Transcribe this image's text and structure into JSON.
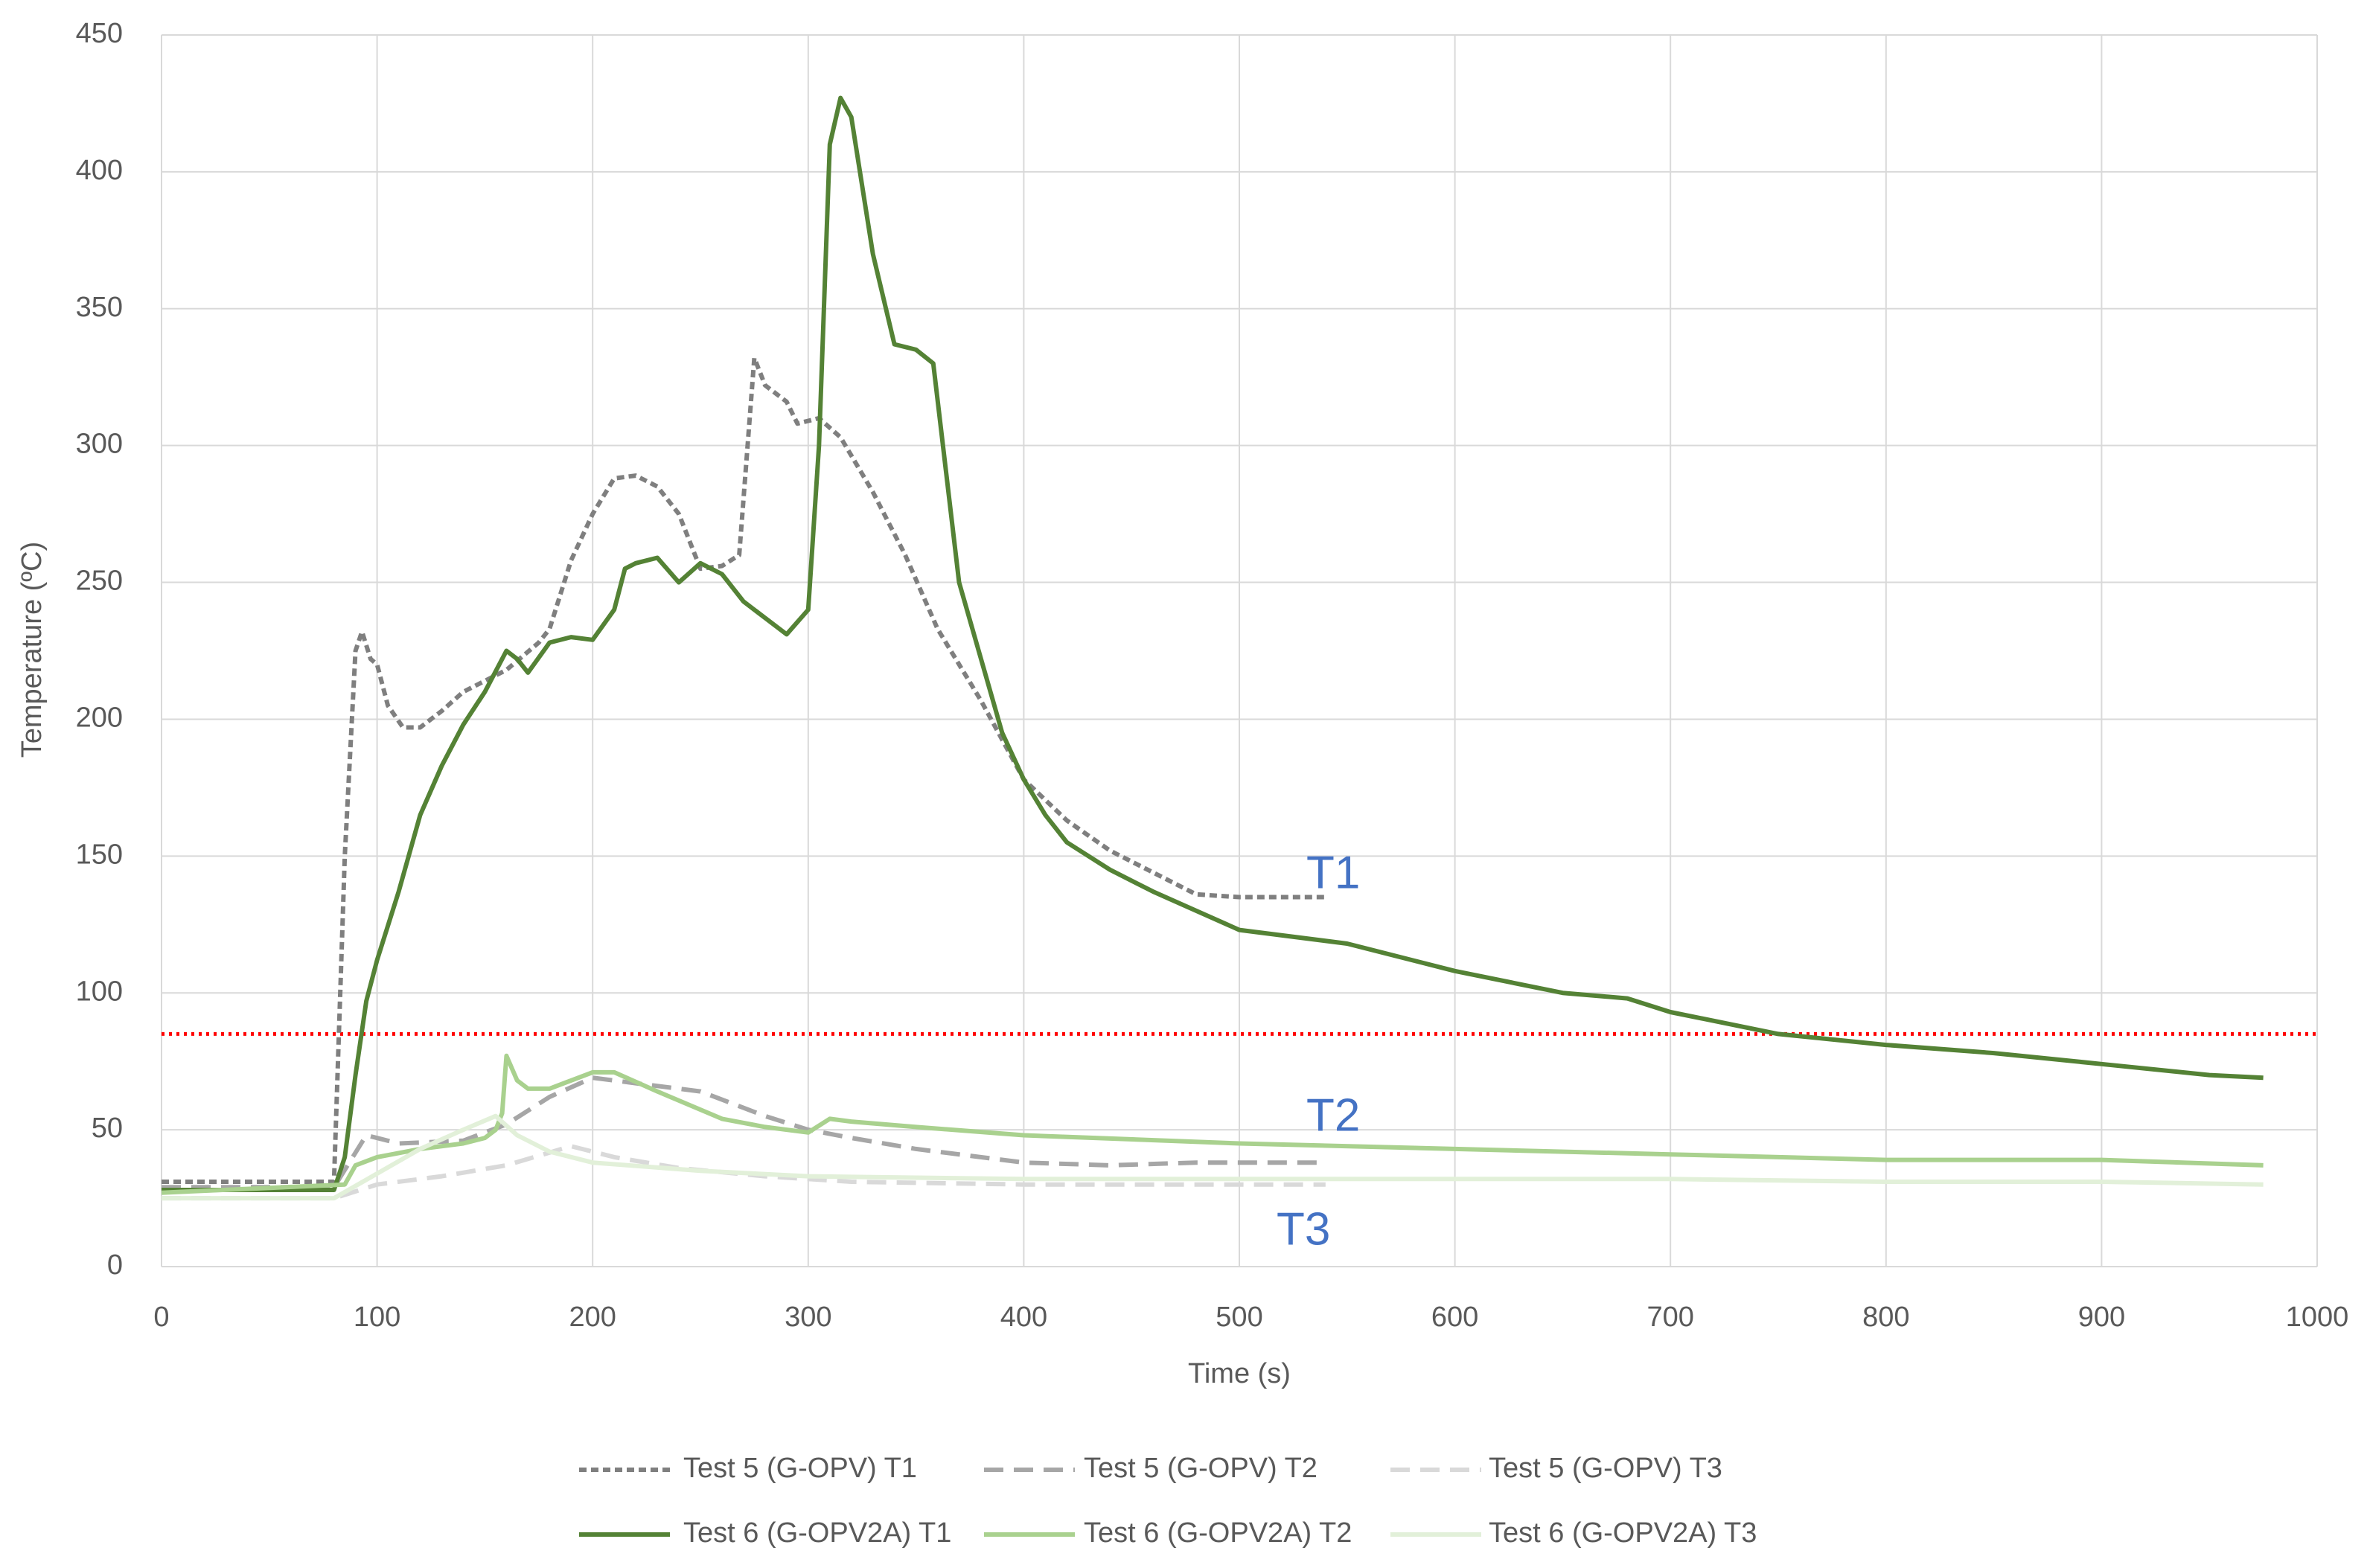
{
  "chart_data": {
    "type": "line",
    "xlabel": "Time (s)",
    "ylabel": "Temperature (ºC)",
    "xlim": [
      0,
      1000
    ],
    "xticks": [
      0,
      100,
      200,
      300,
      400,
      500,
      600,
      700,
      800,
      900,
      1000
    ],
    "ylim": [
      0,
      450
    ],
    "yticks": [
      0,
      50,
      100,
      150,
      200,
      250,
      300,
      350,
      400,
      450
    ],
    "grid": true,
    "legend": "bottom",
    "reference_line": {
      "value": 85,
      "color": "#ff0000"
    },
    "annotations": [
      "T1",
      "T2",
      "T3"
    ],
    "annotation_color": "#4472c4",
    "series": [
      {
        "name": "Test 5 (G-OPV) T1",
        "color": "#7f7f7f",
        "dash": "short",
        "x": [
          0,
          80,
          85,
          90,
          93,
          97,
          100,
          105,
          112,
          120,
          130,
          140,
          160,
          175,
          180,
          190,
          200,
          210,
          220,
          230,
          240,
          250,
          260,
          268,
          275,
          280,
          290,
          295,
          305,
          315,
          330,
          345,
          360,
          380,
          400,
          420,
          440,
          460,
          480,
          500,
          540
        ],
        "values": [
          31,
          31,
          150,
          225,
          232,
          222,
          220,
          205,
          197,
          197,
          203,
          210,
          218,
          228,
          233,
          258,
          275,
          288,
          289,
          285,
          275,
          255,
          256,
          260,
          332,
          322,
          316,
          308,
          310,
          303,
          283,
          260,
          233,
          207,
          178,
          163,
          152,
          144,
          136,
          135,
          135
        ]
      },
      {
        "name": "Test 5 (G-OPV) T2",
        "color": "#a6a6a6",
        "dash": "long",
        "x": [
          0,
          80,
          95,
          110,
          140,
          160,
          180,
          200,
          220,
          250,
          280,
          300,
          320,
          350,
          400,
          440,
          480,
          540
        ],
        "values": [
          29,
          29,
          48,
          45,
          46,
          52,
          62,
          69,
          67,
          64,
          55,
          50,
          47,
          43,
          38,
          37,
          38,
          38
        ]
      },
      {
        "name": "Test 5 (G-OPV) T3",
        "color": "#d9d9d9",
        "dash": "long",
        "x": [
          0,
          80,
          100,
          130,
          160,
          190,
          210,
          240,
          280,
          320,
          400,
          540
        ],
        "values": [
          25,
          25,
          30,
          33,
          37,
          44,
          40,
          36,
          33,
          31,
          30,
          30
        ]
      },
      {
        "name": "Test 6 (G-OPV2A) T1",
        "color": "#548235",
        "dash": "solid",
        "x": [
          0,
          80,
          85,
          90,
          95,
          100,
          110,
          120,
          130,
          140,
          150,
          160,
          165,
          170,
          180,
          190,
          200,
          210,
          215,
          220,
          230,
          240,
          250,
          260,
          270,
          280,
          290,
          300,
          305,
          310,
          315,
          320,
          330,
          340,
          350,
          358,
          370,
          390,
          400,
          410,
          420,
          440,
          460,
          480,
          500,
          550,
          600,
          650,
          680,
          700,
          750,
          800,
          850,
          900,
          950,
          975
        ],
        "values": [
          28,
          28,
          40,
          70,
          97,
          112,
          137,
          165,
          183,
          198,
          210,
          225,
          222,
          217,
          228,
          230,
          229,
          240,
          255,
          257,
          259,
          250,
          257,
          253,
          243,
          237,
          231,
          240,
          300,
          410,
          427,
          420,
          370,
          337,
          335,
          330,
          250,
          195,
          178,
          165,
          155,
          145,
          137,
          130,
          123,
          118,
          108,
          100,
          98,
          93,
          85,
          81,
          78,
          74,
          70,
          69
        ]
      },
      {
        "name": "Test 6 (G-OPV2A) T2",
        "color": "#a9d18e",
        "dash": "solid",
        "x": [
          0,
          85,
          90,
          100,
          120,
          140,
          150,
          155,
          158,
          160,
          165,
          170,
          180,
          190,
          200,
          210,
          230,
          260,
          280,
          300,
          310,
          320,
          350,
          400,
          500,
          600,
          700,
          800,
          900,
          975
        ],
        "values": [
          27,
          30,
          37,
          40,
          43,
          45,
          47,
          50,
          56,
          77,
          68,
          65,
          65,
          68,
          71,
          71,
          64,
          54,
          51,
          49,
          54,
          53,
          51,
          48,
          45,
          43,
          41,
          39,
          39,
          37
        ]
      },
      {
        "name": "Test 6 (G-OPV2A) T3",
        "color": "#e2f0d9",
        "dash": "solid",
        "x": [
          0,
          80,
          100,
          120,
          140,
          155,
          165,
          180,
          200,
          250,
          300,
          400,
          500,
          600,
          700,
          800,
          900,
          975
        ],
        "values": [
          25,
          25,
          34,
          43,
          50,
          55,
          48,
          42,
          38,
          35,
          33,
          32,
          32,
          32,
          32,
          31,
          31,
          30
        ]
      }
    ]
  }
}
